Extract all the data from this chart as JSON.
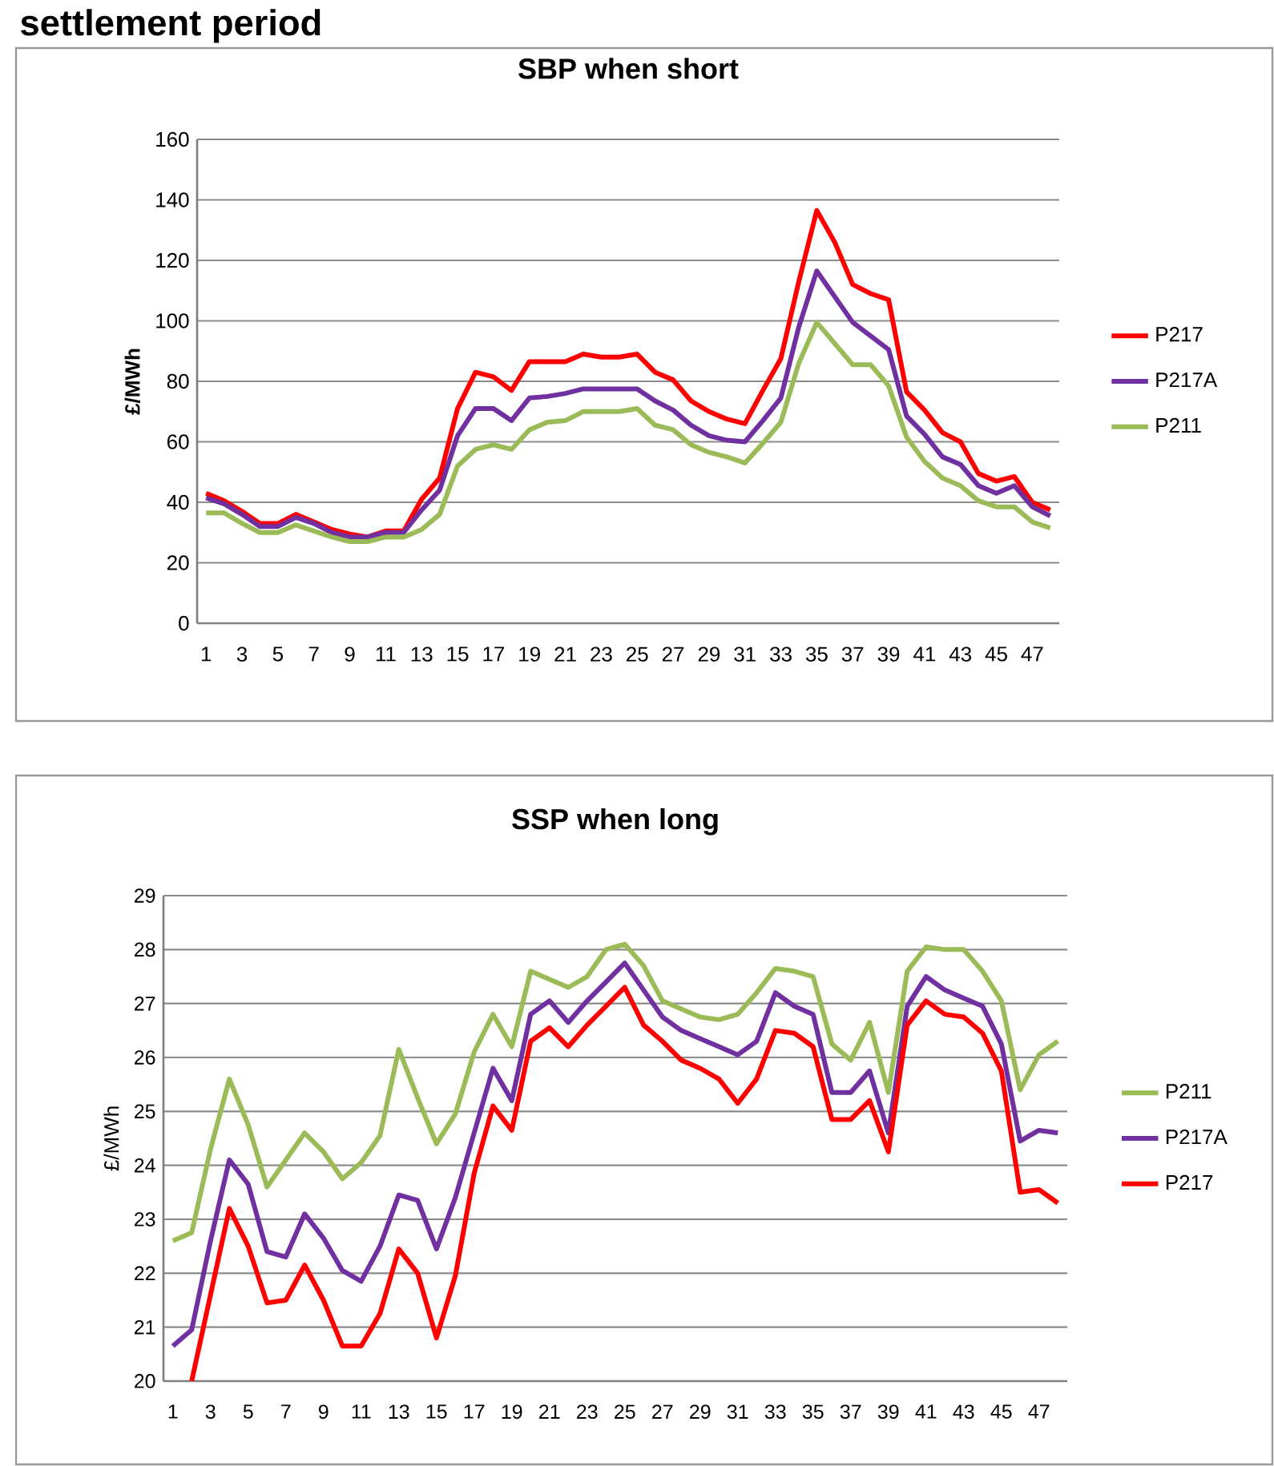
{
  "chart_data": [
    {
      "type": "line",
      "title": "SBP when short",
      "ylabel": "£/MWh",
      "annotations": [
        "settlement period"
      ],
      "categories": [
        "1",
        null,
        "3",
        null,
        "5",
        null,
        "7",
        null,
        "9",
        null,
        "11",
        null,
        "13",
        null,
        "15",
        null,
        "17",
        null,
        "19",
        null,
        "21",
        null,
        "23",
        null,
        "25",
        null,
        "27",
        null,
        "29",
        null,
        "31",
        null,
        "33",
        null,
        "35",
        null,
        "37",
        null,
        "39",
        null,
        "41",
        null,
        "43",
        null,
        "45",
        null,
        "47",
        null
      ],
      "series": [
        {
          "name": "P217",
          "color": "#ff0000",
          "values": [
            43,
            40.5,
            37,
            33,
            33,
            36,
            33.5,
            31,
            29.5,
            28.5,
            30.5,
            30.5,
            41,
            48,
            71,
            83,
            81.5,
            77,
            86.5,
            86.5,
            86.5,
            89,
            88,
            88,
            89,
            83,
            80.5,
            73.5,
            70,
            67.5,
            66,
            77,
            87.5,
            113,
            136.5,
            126,
            112,
            109,
            107,
            76.5,
            70.5,
            63,
            60,
            49.5,
            47,
            48.5,
            40,
            37.5
          ]
        },
        {
          "name": "P217A",
          "color": "#7030a0",
          "values": [
            41.5,
            39.5,
            36,
            32,
            32,
            35,
            33,
            30,
            28.5,
            28.5,
            30,
            30,
            37.5,
            44,
            62,
            71,
            71,
            67,
            74.5,
            75,
            76,
            77.5,
            77.5,
            77.5,
            77.5,
            73.5,
            70.5,
            65.5,
            62,
            60.5,
            60,
            67,
            74.5,
            98,
            116.5,
            108,
            99.5,
            95,
            90.5,
            68.5,
            62.5,
            55,
            52.5,
            45.5,
            43,
            45.5,
            38.5,
            35.5
          ]
        },
        {
          "name": "P211",
          "color": "#9bbb59",
          "values": [
            36.5,
            36.5,
            33,
            30,
            30,
            32.5,
            30.5,
            28.5,
            27,
            27,
            28.5,
            28.5,
            31,
            36,
            52,
            57.5,
            59,
            57.5,
            64,
            66.5,
            67,
            70,
            70,
            70,
            71,
            65.5,
            64,
            59,
            56.5,
            55,
            53,
            59.5,
            66.5,
            86,
            99.5,
            92.5,
            85.5,
            85.5,
            78.5,
            61.5,
            53.5,
            48,
            45.5,
            40.5,
            38.5,
            38.5,
            33.5,
            31.5
          ]
        }
      ],
      "ylim": [
        0,
        160
      ],
      "yticks": [
        0,
        20,
        40,
        60,
        80,
        100,
        120,
        140,
        160
      ],
      "grid": "y",
      "legend": "right"
    },
    {
      "type": "line",
      "title": "SSP when long",
      "ylabel": "£/MWh",
      "categories": [
        "1",
        null,
        "3",
        null,
        "5",
        null,
        "7",
        null,
        "9",
        null,
        "11",
        null,
        "13",
        null,
        "15",
        null,
        "17",
        null,
        "19",
        null,
        "21",
        null,
        "23",
        null,
        "25",
        null,
        "27",
        null,
        "29",
        null,
        "31",
        null,
        "33",
        null,
        "35",
        null,
        "37",
        null,
        "39",
        null,
        "41",
        null,
        "43",
        null,
        "45",
        null,
        "47",
        null
      ],
      "series": [
        {
          "name": "P211",
          "color": "#9bbb59",
          "values": [
            22.6,
            22.75,
            24.3,
            25.6,
            24.75,
            23.6,
            24.1,
            24.6,
            24.25,
            23.75,
            24.05,
            24.55,
            26.15,
            25.25,
            24.4,
            24.95,
            26.1,
            26.8,
            26.2,
            27.6,
            27.45,
            27.3,
            27.5,
            28.0,
            28.1,
            27.7,
            27.05,
            26.9,
            26.75,
            26.7,
            26.8,
            27.2,
            27.65,
            27.6,
            27.5,
            26.25,
            25.95,
            26.65,
            25.35,
            27.6,
            28.05,
            28.0,
            28.0,
            27.6,
            27.05,
            25.4,
            26.05,
            26.3
          ]
        },
        {
          "name": "P217A",
          "color": "#7030a0",
          "values": [
            20.65,
            20.95,
            22.6,
            24.1,
            23.65,
            22.4,
            22.3,
            23.1,
            22.65,
            22.05,
            21.85,
            22.5,
            23.45,
            23.35,
            22.45,
            23.4,
            24.6,
            25.8,
            25.2,
            26.8,
            27.05,
            26.65,
            27.05,
            27.4,
            27.75,
            27.25,
            26.75,
            26.5,
            26.35,
            26.2,
            26.05,
            26.3,
            27.2,
            26.95,
            26.8,
            25.35,
            25.35,
            25.75,
            24.6,
            26.95,
            27.5,
            27.25,
            27.1,
            26.95,
            26.25,
            24.45,
            24.65,
            24.6
          ]
        },
        {
          "name": "P217",
          "color": "#ff0000",
          "values": [
            null,
            20.0,
            21.6,
            23.2,
            22.5,
            21.45,
            21.5,
            22.15,
            21.5,
            20.65,
            20.65,
            21.25,
            22.45,
            22.0,
            20.8,
            21.95,
            23.85,
            25.1,
            24.65,
            26.3,
            26.55,
            26.2,
            26.6,
            26.95,
            27.3,
            26.6,
            26.3,
            25.95,
            25.8,
            25.6,
            25.15,
            25.6,
            26.5,
            26.45,
            26.2,
            24.85,
            24.85,
            25.2,
            24.25,
            26.6,
            27.05,
            26.8,
            26.75,
            26.45,
            25.75,
            23.5,
            23.55,
            23.3
          ]
        }
      ],
      "ylim": [
        20,
        29
      ],
      "yticks": [
        20,
        21,
        22,
        23,
        24,
        25,
        26,
        27,
        28,
        29
      ],
      "grid": "y",
      "legend": "right"
    }
  ]
}
